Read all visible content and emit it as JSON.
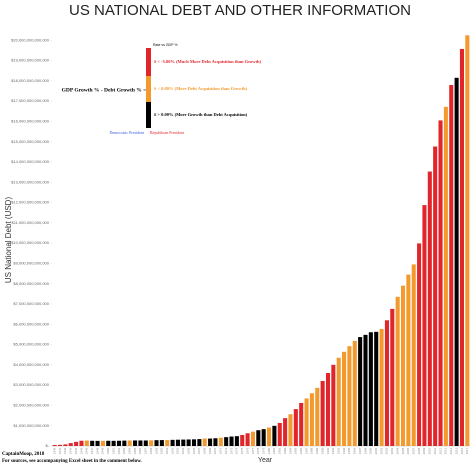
{
  "chart_data": {
    "type": "bar",
    "title": "US NATIONAL DEBT AND OTHER INFORMATION",
    "y_label": "US National Debt (USD)",
    "x_label": "Year",
    "footer": [
      "CaptainMoop, 2018",
      "For sources, see accompanying Excel sheet in the comment below."
    ],
    "categories": [
      "1940",
      "1941",
      "1942",
      "1943",
      "1944",
      "1945",
      "1946",
      "1947",
      "1948",
      "1949",
      "1950",
      "1951",
      "1952",
      "1953",
      "1954",
      "1955",
      "1956",
      "1957",
      "1958",
      "1959",
      "1960",
      "1961",
      "1962",
      "1963",
      "1964",
      "1965",
      "1966",
      "1967",
      "1968",
      "1969",
      "1970",
      "1971",
      "1972",
      "1973",
      "1974",
      "1975",
      "1976",
      "1977",
      "1978",
      "1979",
      "1980",
      "1981",
      "1982",
      "1983",
      "1984",
      "1985",
      "1986",
      "1987",
      "1988",
      "1989",
      "1990",
      "1991",
      "1992",
      "1993",
      "1994",
      "1995",
      "1996",
      "1997",
      "1998",
      "1999",
      "2000",
      "2001",
      "2002",
      "2003",
      "2004",
      "2005",
      "2006",
      "2007",
      "2008",
      "2009",
      "2010",
      "2011",
      "2012",
      "2013",
      "2014",
      "2015",
      "2016",
      "2017"
    ],
    "values": [
      51000000000,
      58000000000,
      79000000000,
      143000000000,
      204000000000,
      260000000000,
      271000000000,
      257000000000,
      252000000000,
      253000000000,
      257000000000,
      255000000000,
      259000000000,
      266000000000,
      271000000000,
      274000000000,
      273000000000,
      272000000000,
      280000000000,
      287000000000,
      291000000000,
      293000000000,
      303000000000,
      310000000000,
      316000000000,
      322000000000,
      328000000000,
      340000000000,
      369000000000,
      366000000000,
      381000000000,
      408000000000,
      436000000000,
      466000000000,
      484000000000,
      542000000000,
      629000000000,
      706000000000,
      777000000000,
      829000000000,
      909000000000,
      995000000000,
      1137000000000,
      1372000000000,
      1565000000000,
      1818000000000,
      2121000000000,
      2346000000000,
      2601000000000,
      2868000000000,
      3206000000000,
      3598000000000,
      4002000000000,
      4351000000000,
      4643000000000,
      4921000000000,
      5181000000000,
      5369000000000,
      5478000000000,
      5606000000000,
      5629000000000,
      5770000000000,
      6198000000000,
      6760000000000,
      7355000000000,
      7905000000000,
      8451000000000,
      8951000000000,
      9986000000000,
      11876000000000,
      13529000000000,
      14764000000000,
      16051000000000,
      16719000000000,
      17794000000000,
      18151000000000,
      19573000000000,
      20245000000000
    ],
    "colors": [
      "#e0262b",
      "#e0262b",
      "#e0262b",
      "#e0262b",
      "#e0262b",
      "#e0262b",
      "#f39a2e",
      "#000000",
      "#000000",
      "#f39a2e",
      "#000000",
      "#000000",
      "#000000",
      "#000000",
      "#f39a2e",
      "#000000",
      "#000000",
      "#000000",
      "#f39a2e",
      "#000000",
      "#000000",
      "#f39a2e",
      "#000000",
      "#000000",
      "#000000",
      "#000000",
      "#000000",
      "#000000",
      "#f39a2e",
      "#000000",
      "#000000",
      "#f39a2e",
      "#000000",
      "#000000",
      "#000000",
      "#e0262b",
      "#e0262b",
      "#f39a2e",
      "#000000",
      "#000000",
      "#f39a2e",
      "#000000",
      "#e0262b",
      "#e0262b",
      "#f39a2e",
      "#e0262b",
      "#e0262b",
      "#f39a2e",
      "#f39a2e",
      "#f39a2e",
      "#e0262b",
      "#e0262b",
      "#e0262b",
      "#f39a2e",
      "#f39a2e",
      "#f39a2e",
      "#f39a2e",
      "#000000",
      "#000000",
      "#000000",
      "#000000",
      "#f39a2e",
      "#e0262b",
      "#e0262b",
      "#f39a2e",
      "#f39a2e",
      "#f39a2e",
      "#f39a2e",
      "#e0262b",
      "#e0262b",
      "#e0262b",
      "#e0262b",
      "#e0262b",
      "#f39a2e",
      "#e0262b",
      "#000000",
      "#e0262b",
      "#f39a2e"
    ],
    "ylim": [
      0,
      21000000000000
    ],
    "yticks": [
      {
        "value": 0,
        "label": "$-"
      },
      {
        "value": 1000000000000,
        "label": "$1,000,000,000,000"
      },
      {
        "value": 2000000000000,
        "label": "$2,000,000,000,000"
      },
      {
        "value": 3000000000000,
        "label": "$3,000,000,000,000"
      },
      {
        "value": 4000000000000,
        "label": "$4,000,000,000,000"
      },
      {
        "value": 5000000000000,
        "label": "$5,000,000,000,000"
      },
      {
        "value": 6000000000000,
        "label": "$6,000,000,000,000"
      },
      {
        "value": 7000000000000,
        "label": "$7,000,000,000,000"
      },
      {
        "value": 8000000000000,
        "label": "$8,000,000,000,000"
      },
      {
        "value": 9000000000000,
        "label": "$9,000,000,000,000"
      },
      {
        "value": 10000000000000,
        "label": "$10,000,000,000,000"
      },
      {
        "value": 11000000000000,
        "label": "$11,000,000,000,000"
      },
      {
        "value": 12000000000000,
        "label": "$12,000,000,000,000"
      },
      {
        "value": 13000000000000,
        "label": "$13,000,000,000,000"
      },
      {
        "value": 14000000000000,
        "label": "$14,000,000,000,000"
      },
      {
        "value": 15000000000000,
        "label": "$15,000,000,000,000"
      },
      {
        "value": 16000000000000,
        "label": "$16,000,000,000,000"
      },
      {
        "value": 17000000000000,
        "label": "$17,000,000,000,000"
      },
      {
        "value": 18000000000000,
        "label": "$18,000,000,000,000"
      },
      {
        "value": 19000000000000,
        "label": "$19,000,000,000,000"
      },
      {
        "value": 20000000000000,
        "label": "$20,000,000,000,000"
      }
    ],
    "legend": {
      "heading": "GDP Growth % - Debt Growth % =",
      "top_note": "Rate vs GDP %",
      "items": [
        {
          "label": "# < -5.00% (Much More Debt Acquisition than Growth)",
          "color": "#e0262b"
        },
        {
          "label": "# < 0.00% (More Debt Acquisition than Growth)",
          "color": "#f39a2e"
        },
        {
          "label": "# > 0.00% (More Growth than Debt Acquisition)",
          "color": "#000000"
        }
      ],
      "parties": [
        {
          "label": "Democratic President",
          "color": "#3a5bd9"
        },
        {
          "label": "Republican President",
          "color": "#e0262b"
        }
      ]
    }
  }
}
